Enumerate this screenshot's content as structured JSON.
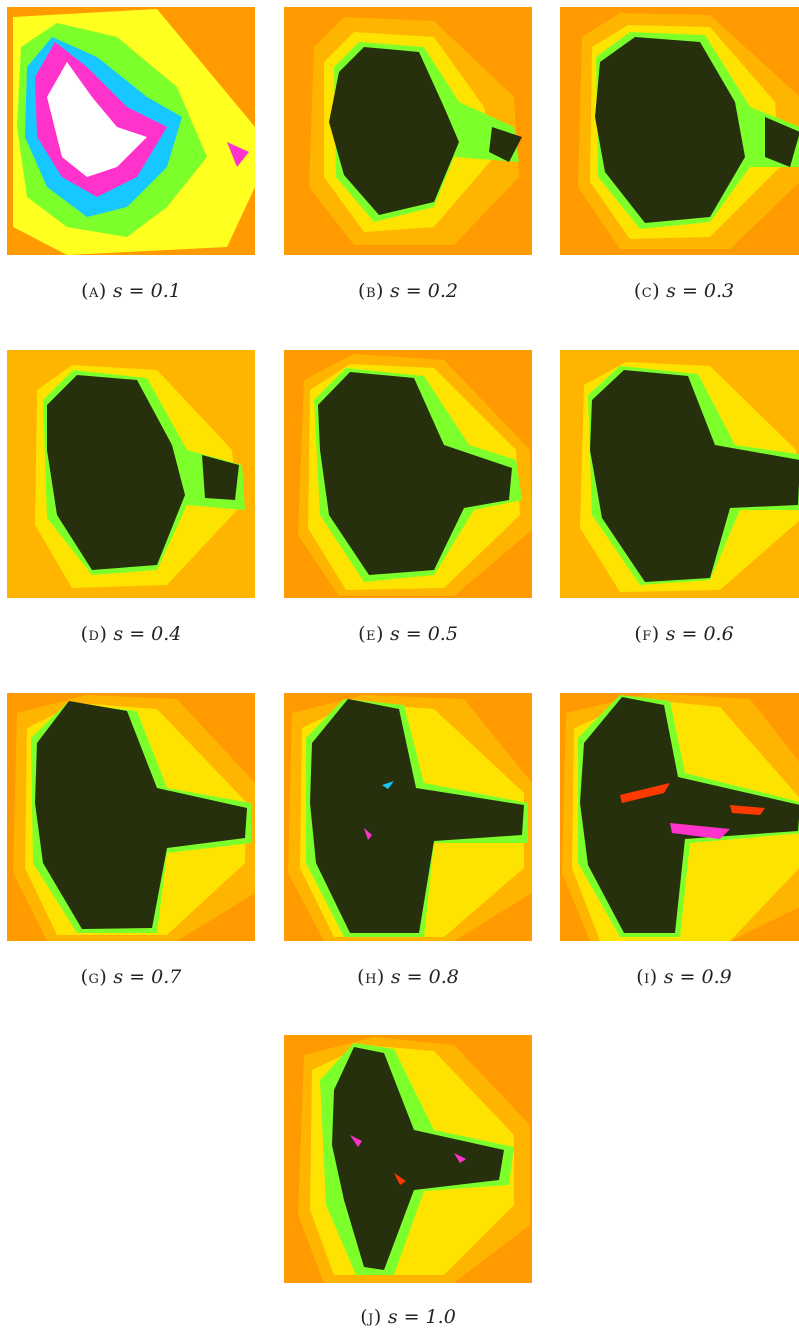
{
  "panels": [
    {
      "id": "a",
      "label": "(a)",
      "s": "s = 0.1"
    },
    {
      "id": "b",
      "label": "(b)",
      "s": "s = 0.2"
    },
    {
      "id": "c",
      "label": "(c)",
      "s": "s = 0.3"
    },
    {
      "id": "d",
      "label": "(d)",
      "s": "s = 0.4"
    },
    {
      "id": "e",
      "label": "(e)",
      "s": "s = 0.5"
    },
    {
      "id": "f",
      "label": "(f)",
      "s": "s = 0.6"
    },
    {
      "id": "g",
      "label": "(g)",
      "s": "s = 0.7"
    },
    {
      "id": "h",
      "label": "(h)",
      "s": "s = 0.8"
    },
    {
      "id": "i",
      "label": "(i)",
      "s": "s = 0.9"
    },
    {
      "id": "j",
      "label": "(j)",
      "s": "s = 1.0"
    }
  ],
  "colors": {
    "background_orange": "#ff9a00",
    "band_mid": "#ffb400",
    "band_yellow": "#ffe300",
    "band_light": "#ffff20",
    "band_green": "#7cff2a",
    "fractal_dark": "#26300c",
    "accent_cyan": "#16c8ff",
    "accent_magenta": "#ff33cc",
    "accent_red": "#ff3a00"
  }
}
